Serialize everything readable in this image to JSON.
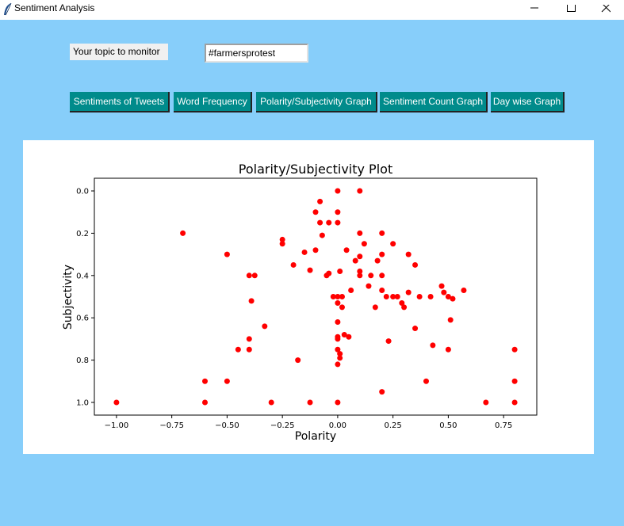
{
  "window": {
    "title": "Sentiment Analysis",
    "controls": [
      "minimize",
      "maximize",
      "close"
    ]
  },
  "topic": {
    "label": "Your topic to monitor",
    "value": "#farmersprotest"
  },
  "buttons": [
    {
      "label": "Sentiments of Tweets"
    },
    {
      "label": "Word Frequency"
    },
    {
      "label": "Polarity/Subjectivity Graph"
    },
    {
      "label": "Sentiment Count Graph"
    },
    {
      "label": "Day wise Graph"
    }
  ],
  "colors": {
    "background": "#87cefa",
    "button": "#008b8b",
    "marker": "#ff0000"
  },
  "chart_data": {
    "type": "scatter",
    "title": "Polarity/Subjectivity Plot",
    "xlabel": "Polarity",
    "ylabel": "Subjectivity",
    "xlim": [
      -1.1,
      0.9
    ],
    "ylim": [
      1.06,
      -0.06
    ],
    "y_inverted": true,
    "grid": false,
    "xticks": [
      -1.0,
      -0.75,
      -0.5,
      -0.25,
      0.0,
      0.25,
      0.5,
      0.75
    ],
    "xtick_labels": [
      "−1.00",
      "−0.75",
      "−0.50",
      "−0.25",
      "0.00",
      "0.25",
      "0.50",
      "0.75"
    ],
    "yticks": [
      0.0,
      0.2,
      0.4,
      0.6,
      0.8,
      1.0
    ],
    "ytick_labels": [
      "0.0",
      "0.2",
      "0.4",
      "0.6",
      "0.8",
      "1.0"
    ],
    "marker_color": "#ff0000",
    "points": [
      [
        -1.0,
        1.0
      ],
      [
        -0.7,
        0.2
      ],
      [
        -0.6,
        0.9
      ],
      [
        -0.6,
        1.0
      ],
      [
        -0.5,
        0.3
      ],
      [
        -0.5,
        0.9
      ],
      [
        -0.45,
        0.75
      ],
      [
        -0.4,
        0.4
      ],
      [
        -0.4,
        0.7
      ],
      [
        -0.4,
        0.75
      ],
      [
        -0.39,
        0.52
      ],
      [
        -0.375,
        0.4
      ],
      [
        -0.33,
        0.64
      ],
      [
        -0.3,
        1.0
      ],
      [
        -0.25,
        0.23
      ],
      [
        -0.25,
        0.25
      ],
      [
        -0.2,
        0.35
      ],
      [
        -0.18,
        0.8
      ],
      [
        -0.15,
        0.29
      ],
      [
        -0.125,
        0.375
      ],
      [
        -0.125,
        1.0
      ],
      [
        -0.1,
        0.1
      ],
      [
        -0.1,
        0.28
      ],
      [
        -0.08,
        0.05
      ],
      [
        -0.08,
        0.15
      ],
      [
        -0.07,
        0.21
      ],
      [
        -0.05,
        0.4
      ],
      [
        -0.04,
        0.39
      ],
      [
        -0.04,
        0.15
      ],
      [
        -0.02,
        0.5
      ],
      [
        0.0,
        0.0
      ],
      [
        0.0,
        0.1
      ],
      [
        0.0,
        0.15
      ],
      [
        0.0,
        0.5
      ],
      [
        0.0,
        0.53
      ],
      [
        0.0,
        0.62
      ],
      [
        0.0,
        0.69
      ],
      [
        0.0,
        0.7
      ],
      [
        0.0,
        0.75
      ],
      [
        0.0,
        0.82
      ],
      [
        0.0,
        1.0
      ],
      [
        0.01,
        0.38
      ],
      [
        0.01,
        0.77
      ],
      [
        0.01,
        0.79
      ],
      [
        0.02,
        0.55
      ],
      [
        0.02,
        0.5
      ],
      [
        0.03,
        0.68
      ],
      [
        0.04,
        0.28
      ],
      [
        0.05,
        0.69
      ],
      [
        0.06,
        0.47
      ],
      [
        0.08,
        0.33
      ],
      [
        0.1,
        0.0
      ],
      [
        0.1,
        0.2
      ],
      [
        0.1,
        0.31
      ],
      [
        0.1,
        0.38
      ],
      [
        0.1,
        0.4
      ],
      [
        0.12,
        0.25
      ],
      [
        0.14,
        0.45
      ],
      [
        0.15,
        0.4
      ],
      [
        0.17,
        0.55
      ],
      [
        0.18,
        0.33
      ],
      [
        0.2,
        0.2
      ],
      [
        0.2,
        0.3
      ],
      [
        0.2,
        0.4
      ],
      [
        0.2,
        0.47
      ],
      [
        0.2,
        0.95
      ],
      [
        0.22,
        0.5
      ],
      [
        0.23,
        0.71
      ],
      [
        0.25,
        0.25
      ],
      [
        0.25,
        0.5
      ],
      [
        0.27,
        0.5
      ],
      [
        0.29,
        0.53
      ],
      [
        0.3,
        0.55
      ],
      [
        0.32,
        0.3
      ],
      [
        0.32,
        0.48
      ],
      [
        0.35,
        0.35
      ],
      [
        0.35,
        0.65
      ],
      [
        0.37,
        0.5
      ],
      [
        0.4,
        0.9
      ],
      [
        0.42,
        0.5
      ],
      [
        0.43,
        0.73
      ],
      [
        0.47,
        0.45
      ],
      [
        0.48,
        0.48
      ],
      [
        0.5,
        0.5
      ],
      [
        0.5,
        0.75
      ],
      [
        0.51,
        0.61
      ],
      [
        0.52,
        0.51
      ],
      [
        0.57,
        0.47
      ],
      [
        0.67,
        1.0
      ],
      [
        0.8,
        0.75
      ],
      [
        0.8,
        0.9
      ],
      [
        0.8,
        1.0
      ]
    ]
  }
}
